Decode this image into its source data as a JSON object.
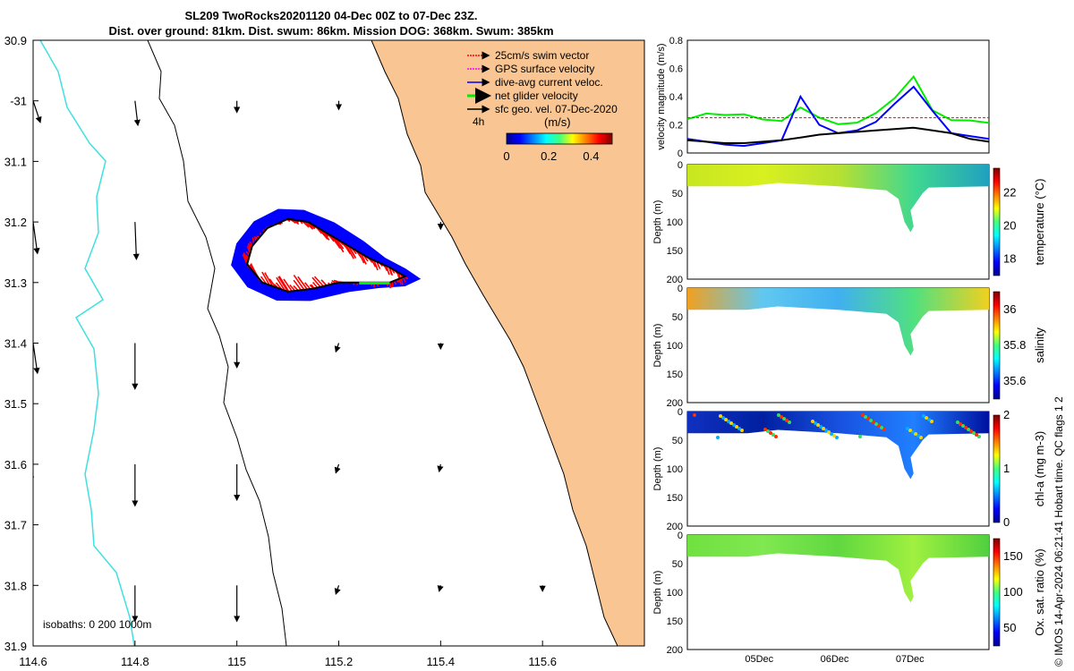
{
  "titles": {
    "line1": "SL209 TwoRocks20201120 04-Dec 00Z to 07-Dec 23Z.",
    "line2": "Dist. over ground: 81km. Dist. swum: 86km. Mission DOG: 368km. Swum: 385km"
  },
  "side_label": "© IMOS 14-Apr-2024 06:21:41 Hobart time. QC flags 1 2",
  "colors": {
    "land": "#f9c593",
    "coast200": "#000000",
    "isobath0": "#40e0e0",
    "swim": "#ff0000",
    "gps": "#ff00ff",
    "current": "#0000ff",
    "net": "#00ee00",
    "geo": "#000000"
  },
  "chart_data": [
    {
      "type": "map",
      "xlabel": "",
      "ylabel": "",
      "xlim": [
        114.6,
        115.8
      ],
      "ylim": [
        -31.9,
        -30.9
      ],
      "x_ticks": [
        114.6,
        114.8,
        115,
        115.2,
        115.4,
        115.6
      ],
      "x_tick_labels": [
        "114.6",
        "114.8",
        "115",
        "115.2",
        "115.4",
        "115.6"
      ],
      "y_ticks": [
        -30.9,
        -31.0,
        -31.1,
        -31.2,
        -31.3,
        -31.4,
        -31.5,
        -31.6,
        -31.7,
        -31.8,
        -31.9
      ],
      "y_tick_labels": [
        "30.9",
        "-31",
        "31.1",
        "31.2",
        "31.3",
        "31.4",
        "31.5",
        "31.6",
        "31.7",
        "31.8",
        "31.9"
      ],
      "legend": [
        {
          "label": "25cm/s swim vector",
          "color": "#ff0000"
        },
        {
          "label": "GPS surface velocity",
          "color": "#ff00ff"
        },
        {
          "label": "dive-avg current veloc.",
          "color": "#0000ff"
        },
        {
          "label": "net glider velocity",
          "color": "#00ee00"
        },
        {
          "label": "sfc geo. vel. 07-Dec-2020",
          "color": "#000000"
        }
      ],
      "annotation_4h": "4h",
      "colorbar": {
        "title": "(m/s)",
        "ticks": [
          "0",
          "0.2",
          "0.4"
        ],
        "range": [
          0,
          0.5
        ]
      },
      "isobaths_label": "isobaths: 0   200  1000m",
      "track_points": [
        {
          "lon": 115.03,
          "lat": -31.24
        },
        {
          "lon": 115.06,
          "lat": -31.21
        },
        {
          "lon": 115.1,
          "lat": -31.195
        },
        {
          "lon": 115.14,
          "lat": -31.2
        },
        {
          "lon": 115.18,
          "lat": -31.22
        },
        {
          "lon": 115.22,
          "lat": -31.24
        },
        {
          "lon": 115.26,
          "lat": -31.26
        },
        {
          "lon": 115.3,
          "lat": -31.275
        },
        {
          "lon": 115.33,
          "lat": -31.29
        },
        {
          "lon": 115.3,
          "lat": -31.3
        },
        {
          "lon": 115.25,
          "lat": -31.3
        },
        {
          "lon": 115.2,
          "lat": -31.3
        },
        {
          "lon": 115.15,
          "lat": -31.31
        },
        {
          "lon": 115.1,
          "lat": -31.315
        },
        {
          "lon": 115.05,
          "lat": -31.3
        },
        {
          "lon": 115.02,
          "lat": -31.27
        },
        {
          "lon": 115.03,
          "lat": -31.24
        }
      ],
      "geo_vectors": [
        {
          "lon": 114.6,
          "lat": -31.0,
          "u": 0.05,
          "v": -0.15
        },
        {
          "lon": 114.8,
          "lat": -31.0,
          "u": 0.02,
          "v": -0.17
        },
        {
          "lon": 115.0,
          "lat": -31.0,
          "u": 0.0,
          "v": -0.08
        },
        {
          "lon": 115.2,
          "lat": -31.0,
          "u": 0.0,
          "v": -0.06
        },
        {
          "lon": 114.6,
          "lat": -31.2,
          "u": 0.03,
          "v": -0.22
        },
        {
          "lon": 114.8,
          "lat": -31.2,
          "u": 0.01,
          "v": -0.26
        },
        {
          "lon": 115.4,
          "lat": -31.2,
          "u": 0.0,
          "v": -0.05
        },
        {
          "lon": 114.6,
          "lat": -31.4,
          "u": 0.03,
          "v": -0.21
        },
        {
          "lon": 114.8,
          "lat": -31.4,
          "u": 0.0,
          "v": -0.32
        },
        {
          "lon": 115.0,
          "lat": -31.4,
          "u": 0.0,
          "v": -0.17
        },
        {
          "lon": 115.2,
          "lat": -31.4,
          "u": -0.02,
          "v": -0.06
        },
        {
          "lon": 115.4,
          "lat": -31.4,
          "u": 0.0,
          "v": -0.04
        },
        {
          "lon": 114.6,
          "lat": -31.6,
          "u": -0.02,
          "v": -0.12
        },
        {
          "lon": 114.8,
          "lat": -31.6,
          "u": 0.0,
          "v": -0.29
        },
        {
          "lon": 115.0,
          "lat": -31.6,
          "u": 0.0,
          "v": -0.25
        },
        {
          "lon": 115.2,
          "lat": -31.6,
          "u": -0.02,
          "v": -0.06
        },
        {
          "lon": 115.4,
          "lat": -31.6,
          "u": -0.01,
          "v": -0.05
        },
        {
          "lon": 114.8,
          "lat": -31.8,
          "u": 0.0,
          "v": -0.25
        },
        {
          "lon": 115.0,
          "lat": -31.8,
          "u": 0.0,
          "v": -0.25
        },
        {
          "lon": 115.2,
          "lat": -31.8,
          "u": -0.02,
          "v": -0.06
        },
        {
          "lon": 115.4,
          "lat": -31.8,
          "u": -0.01,
          "v": -0.04
        },
        {
          "lon": 115.6,
          "lat": -31.8,
          "u": 0.0,
          "v": -0.04
        }
      ]
    },
    {
      "type": "line",
      "ylabel": "velocity magnitude (m/s)",
      "ylim": [
        0,
        0.8
      ],
      "y_ticks": [
        "0",
        "0.2",
        "0.4",
        "0.6",
        "0.8"
      ],
      "x": [
        0,
        0.25,
        0.5,
        0.75,
        1.0,
        1.25,
        1.5,
        1.75,
        2.0,
        2.25,
        2.5,
        2.75,
        3.0,
        3.25,
        3.5,
        3.75,
        4.0
      ],
      "series": [
        {
          "color": "#00ee00",
          "values": [
            0.24,
            0.26,
            0.24,
            0.25,
            0.23,
            0.24,
            0.35,
            0.28,
            0.22,
            0.21,
            0.26,
            0.36,
            0.52,
            0.3,
            0.25,
            0.26,
            0.24
          ]
        },
        {
          "color": "#0000ff",
          "values": [
            0.1,
            0.08,
            0.06,
            0.05,
            0.07,
            0.09,
            0.4,
            0.2,
            0.14,
            0.16,
            0.22,
            0.35,
            0.47,
            0.3,
            0.14,
            0.12,
            0.1
          ]
        },
        {
          "color": "#ff0000",
          "values": [
            0.25,
            0.25,
            0.25,
            0.25,
            0.25,
            0.25,
            0.25,
            0.25,
            0.25,
            0.25,
            0.25,
            0.25,
            0.25,
            0.25,
            0.25,
            0.25,
            0.25
          ]
        },
        {
          "color": "#000000",
          "values": [
            0.09,
            0.08,
            0.07,
            0.07,
            0.08,
            0.09,
            0.11,
            0.13,
            0.14,
            0.15,
            0.16,
            0.17,
            0.18,
            0.16,
            0.14,
            0.1,
            0.08
          ]
        }
      ]
    },
    {
      "type": "heatmap",
      "variable": "temperature",
      "colorbar_label": "temperature (°C)",
      "ylabel": "Depth (m)",
      "ylim": [
        200,
        0
      ],
      "y_ticks": [
        "0",
        "50",
        "100",
        "150",
        "200"
      ],
      "cbar_range": [
        17,
        23.5
      ],
      "cbar_ticks": [
        "18",
        "20",
        "22"
      ]
    },
    {
      "type": "heatmap",
      "variable": "salinity",
      "colorbar_label": "salinity",
      "ylabel": "Depth (m)",
      "ylim": [
        200,
        0
      ],
      "y_ticks": [
        "0",
        "50",
        "100",
        "150",
        "200"
      ],
      "cbar_range": [
        35.5,
        36.1
      ],
      "cbar_ticks": [
        "35.6",
        "35.8",
        "36"
      ]
    },
    {
      "type": "heatmap",
      "variable": "chl-a",
      "colorbar_label": "chl-a (mg m-3)",
      "ylabel": "Depth (m)",
      "ylim": [
        200,
        0
      ],
      "y_ticks": [
        "0",
        "50",
        "100",
        "150",
        "200"
      ],
      "cbar_range": [
        0,
        2
      ],
      "cbar_ticks": [
        "0",
        "1",
        "2"
      ]
    },
    {
      "type": "heatmap",
      "variable": "oxygen",
      "colorbar_label": "Ox. sat. ratio (%)",
      "ylabel": "Depth (m)",
      "ylim": [
        200,
        0
      ],
      "y_ticks": [
        "0",
        "50",
        "100",
        "150",
        "200"
      ],
      "cbar_range": [
        25,
        175
      ],
      "cbar_ticks": [
        "50",
        "100",
        "150"
      ],
      "x_tick_labels": [
        "05Dec",
        "06Dec",
        "07Dec"
      ]
    }
  ]
}
